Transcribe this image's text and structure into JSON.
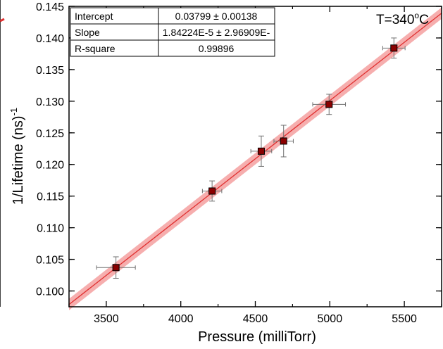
{
  "chart_data": {
    "type": "scatter",
    "xlabel": "Pressure (milliTorr)",
    "ylabel_main": "1/Lifetime (ns)",
    "ylabel_sup": "-1",
    "annotation_main": "T=340",
    "annotation_sup": "o",
    "annotation_unit": "C",
    "xlim": [
      3250,
      5750
    ],
    "ylim": [
      0.0975,
      0.145
    ],
    "x_ticks": [
      "3500",
      "4000",
      "4500",
      "5000",
      "5500"
    ],
    "x_tick_values": [
      3500,
      4000,
      4500,
      5000,
      5500
    ],
    "y_ticks": [
      "0.100",
      "0.105",
      "0.110",
      "0.115",
      "0.120",
      "0.125",
      "0.130",
      "0.135",
      "0.140",
      "0.145"
    ],
    "y_tick_values": [
      0.1,
      0.105,
      0.11,
      0.115,
      0.12,
      0.125,
      0.13,
      0.135,
      0.14,
      0.145
    ],
    "points": [
      {
        "x": 3565,
        "y": 0.1037,
        "xerr": 130,
        "yerr": 0.0017
      },
      {
        "x": 4210,
        "y": 0.1158,
        "xerr": 65,
        "yerr": 0.0016
      },
      {
        "x": 4540,
        "y": 0.1221,
        "xerr": 70,
        "yerr": 0.0024
      },
      {
        "x": 4690,
        "y": 0.1237,
        "xerr": 65,
        "yerr": 0.0025
      },
      {
        "x": 4995,
        "y": 0.1295,
        "xerr": 110,
        "yerr": 0.0016
      },
      {
        "x": 5430,
        "y": 0.1384,
        "xerr": 75,
        "yerr": 0.0016
      }
    ],
    "fit": {
      "intercept": 0.03799,
      "slope": 1.84224e-05
    },
    "marker_color": "#8b0000",
    "fit_color": "#e03030",
    "band_color": "#f4a0a0"
  },
  "fit_table": [
    {
      "label": "Intercept",
      "value": "0.03799 ± 0.00138"
    },
    {
      "label": "Slope",
      "value": "1.84224E-5 ± 2.96909E-"
    },
    {
      "label": "R-square",
      "value": "0.99896"
    }
  ]
}
